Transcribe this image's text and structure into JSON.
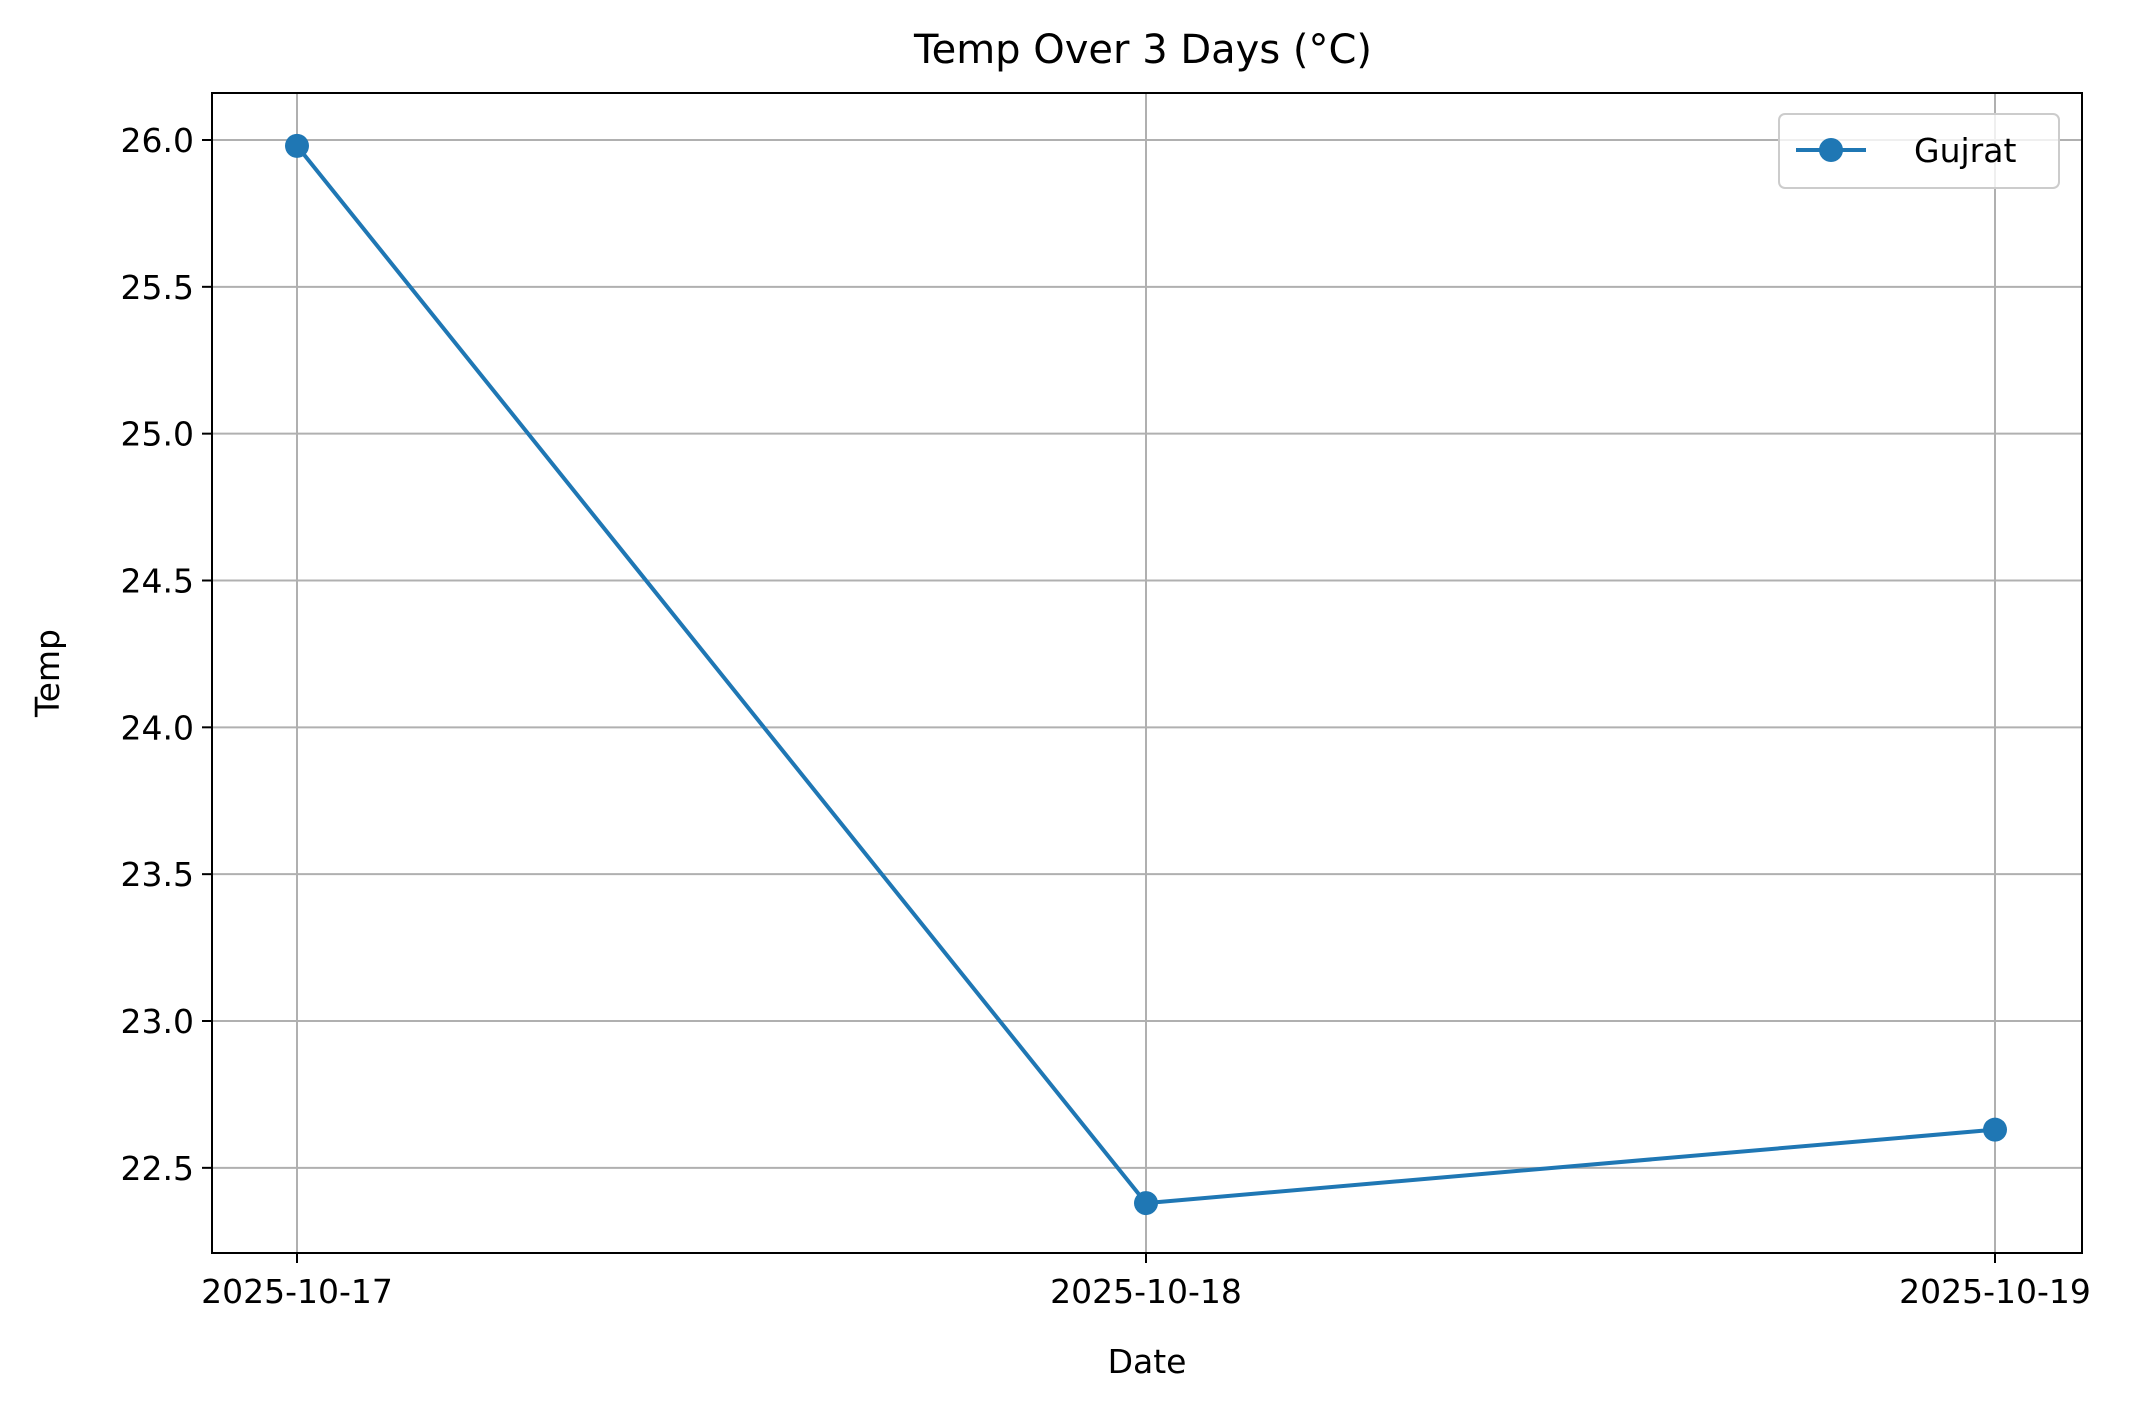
{
  "chart_data": {
    "type": "line",
    "title": "Temp Over 3 Days (°C)",
    "xlabel": "Date",
    "ylabel": "Temp",
    "categories": [
      "2025-10-17",
      "2025-10-18",
      "2025-10-19"
    ],
    "series": [
      {
        "name": "Gujrat",
        "values": [
          25.98,
          22.38,
          22.63
        ],
        "color": "#1f77b4",
        "marker": "circle"
      }
    ],
    "ylim": [
      22.21,
      26.16
    ],
    "yticks": [
      "22.5",
      "23.0",
      "23.5",
      "24.0",
      "24.5",
      "25.0",
      "25.5",
      "26.0"
    ],
    "grid": true,
    "legend_position": "top-right"
  }
}
